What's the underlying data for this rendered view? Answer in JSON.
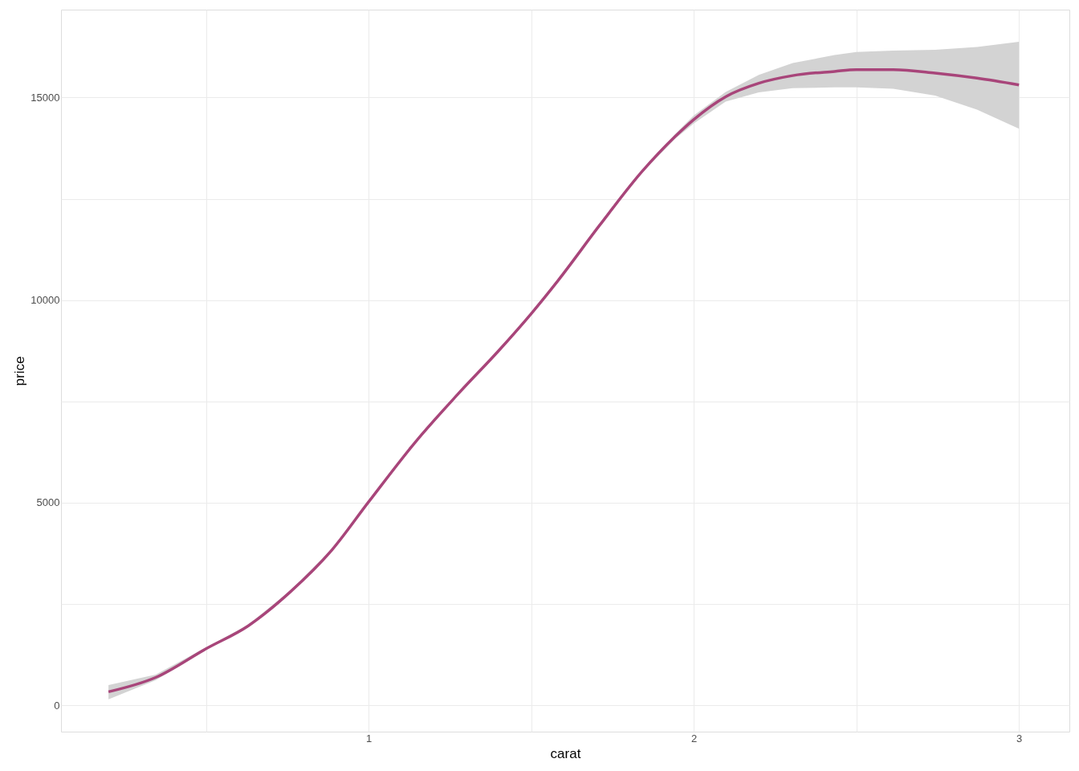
{
  "chart_data": {
    "type": "line",
    "xlabel": "carat",
    "ylabel": "price",
    "xlim": [
      0.054,
      3.155
    ],
    "ylim": [
      -650,
      17170
    ],
    "xticks": [
      {
        "value": 0.5,
        "label": null
      },
      1,
      {
        "value": 1.5,
        "label": null
      },
      2,
      {
        "value": 2.5,
        "label": null
      },
      3
    ],
    "yticks": [
      0,
      {
        "value": 2500,
        "label": null
      },
      5000,
      {
        "value": 7500,
        "label": null
      },
      10000,
      {
        "value": 12500,
        "label": null
      },
      15000
    ],
    "grid": true,
    "series": [
      {
        "color": "#a8457a",
        "x": [
          0.2,
          0.345,
          0.5,
          0.629,
          0.758,
          0.887,
          1.0,
          1.144,
          1.273,
          1.402,
          1.5,
          1.582,
          1.711,
          1.84,
          1.943,
          2.0,
          2.098,
          2.2,
          2.304,
          2.433,
          2.5,
          2.613,
          2.742,
          2.871,
          3.0
        ],
        "values": [
          333,
          688,
          1396,
          1958,
          2792,
          3833,
          5021,
          6500,
          7667,
          8771,
          9667,
          10479,
          11854,
          13167,
          14042,
          14458,
          15021,
          15354,
          15542,
          15646,
          15688,
          15688,
          15604,
          15479,
          15313
        ],
        "lower": [
          146,
          620,
          1366,
          1928,
          2762,
          3803,
          4991,
          6470,
          7637,
          8741,
          9637,
          10449,
          11824,
          13137,
          13982,
          14358,
          14900,
          15130,
          15230,
          15250,
          15250,
          15220,
          15050,
          14700,
          14229
        ],
        "upper": [
          500,
          756,
          1426,
          1988,
          2822,
          3863,
          5051,
          6530,
          7697,
          8801,
          9697,
          10509,
          11884,
          13197,
          14102,
          14558,
          15140,
          15560,
          15850,
          16050,
          16125,
          16160,
          16180,
          16250,
          16375
        ]
      }
    ]
  }
}
